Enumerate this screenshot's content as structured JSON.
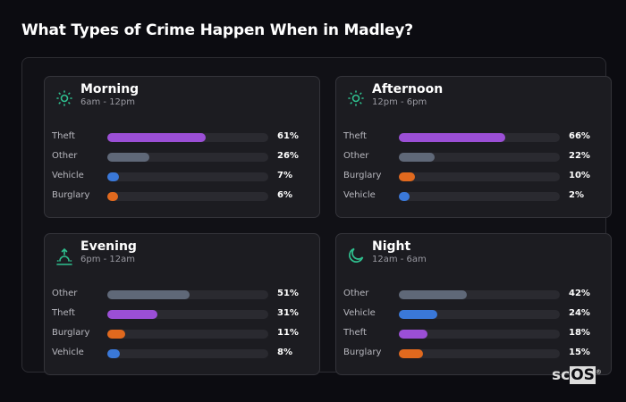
{
  "title": "What Types of Crime Happen When in Madley?",
  "colors": {
    "Theft": "#9b4fd6",
    "Other": "#5f6878",
    "Vehicle": "#3a78d8",
    "Burglary": "#e0691e",
    "icon": "#2fc08f"
  },
  "cards": [
    {
      "name": "Morning",
      "time": "6am - 12pm",
      "icon": "sun-icon",
      "rows": [
        {
          "label": "Theft",
          "value": 61,
          "text": "61%"
        },
        {
          "label": "Other",
          "value": 26,
          "text": "26%"
        },
        {
          "label": "Vehicle",
          "value": 7,
          "text": "7%"
        },
        {
          "label": "Burglary",
          "value": 6,
          "text": "6%"
        }
      ]
    },
    {
      "name": "Afternoon",
      "time": "12pm - 6pm",
      "icon": "sun-icon",
      "rows": [
        {
          "label": "Theft",
          "value": 66,
          "text": "66%"
        },
        {
          "label": "Other",
          "value": 22,
          "text": "22%"
        },
        {
          "label": "Burglary",
          "value": 10,
          "text": "10%"
        },
        {
          "label": "Vehicle",
          "value": 2,
          "text": "2%"
        }
      ]
    },
    {
      "name": "Evening",
      "time": "6pm - 12am",
      "icon": "sunset-icon",
      "rows": [
        {
          "label": "Other",
          "value": 51,
          "text": "51%"
        },
        {
          "label": "Theft",
          "value": 31,
          "text": "31%"
        },
        {
          "label": "Burglary",
          "value": 11,
          "text": "11%"
        },
        {
          "label": "Vehicle",
          "value": 8,
          "text": "8%"
        }
      ]
    },
    {
      "name": "Night",
      "time": "12am - 6am",
      "icon": "moon-icon",
      "rows": [
        {
          "label": "Other",
          "value": 42,
          "text": "42%"
        },
        {
          "label": "Vehicle",
          "value": 24,
          "text": "24%"
        },
        {
          "label": "Theft",
          "value": 18,
          "text": "18%"
        },
        {
          "label": "Burglary",
          "value": 15,
          "text": "15%"
        }
      ]
    }
  ],
  "logo": {
    "sc": "sc",
    "os": "OS",
    "reg": "®"
  }
}
